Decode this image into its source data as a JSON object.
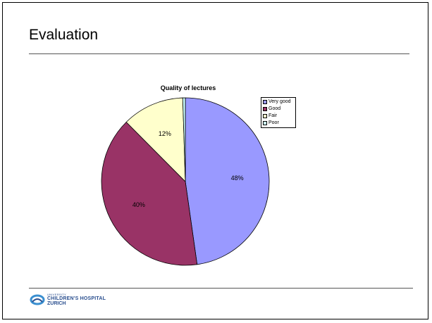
{
  "slide": {
    "title": "Evaluation"
  },
  "chart_data": {
    "type": "pie",
    "title": "Quality of lectures",
    "categories": [
      "Very good",
      "Good",
      "Fair",
      "Poor"
    ],
    "values": [
      48,
      40,
      12,
      0.5
    ],
    "data_labels": [
      "48%",
      "40%",
      "12%",
      ""
    ],
    "colors": [
      "#9999ff",
      "#993366",
      "#ffffcc",
      "#ccffff"
    ],
    "legend": "right"
  },
  "footer": {
    "logo_small": "UNIVERSITY",
    "logo_main": "CHILDREN'S HOSPITAL",
    "logo_sub": "ZURICH"
  }
}
